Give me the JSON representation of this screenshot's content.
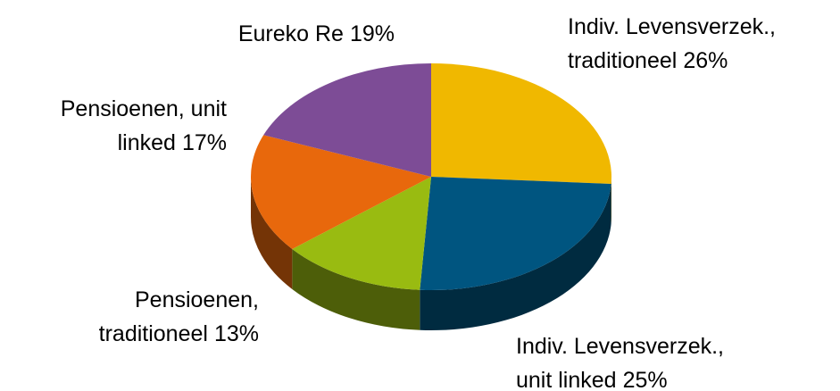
{
  "chart_data": {
    "type": "pie",
    "categories": [
      [
        "Indiv. Levensverzek.,",
        "traditioneel"
      ],
      [
        "Indiv. Levensverzek.,",
        "unit linked"
      ],
      [
        "Pensioenen,",
        "traditioneel"
      ],
      [
        "Pensioenen, unit",
        "linked"
      ],
      [
        "Eureko Re"
      ]
    ],
    "values": [
      26,
      25,
      13,
      17,
      19
    ],
    "value_labels": [
      "26%",
      "25%",
      "13%",
      "17%",
      "19%"
    ],
    "colors": [
      "#f0b800",
      "#005580",
      "#99bb11",
      "#e8680c",
      "#7d4c96"
    ]
  }
}
